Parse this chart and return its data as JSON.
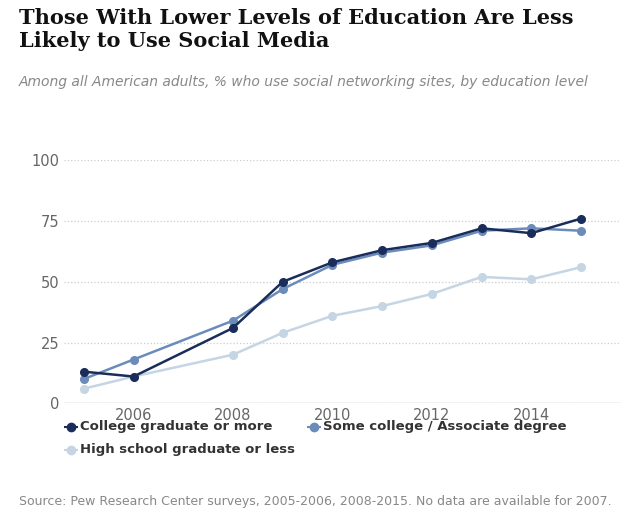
{
  "title_line1": "Those With Lower Levels of Education Are Less",
  "title_line2": "Likely to Use Social Media",
  "subtitle": "Among all American adults, % who use social networking sites, by education level",
  "source": "Source: Pew Research Center surveys, 2005-2006, 2008-2015. No data are available for 2007.",
  "years": [
    2005,
    2006,
    2008,
    2009,
    2010,
    2011,
    2012,
    2013,
    2014,
    2015
  ],
  "college_grad": [
    13,
    11,
    31,
    50,
    58,
    63,
    66,
    72,
    70,
    76
  ],
  "some_college": [
    10,
    18,
    34,
    47,
    57,
    62,
    65,
    71,
    72,
    71
  ],
  "hs_or_less": [
    6,
    11,
    20,
    29,
    36,
    40,
    45,
    52,
    51,
    56
  ],
  "colors": {
    "college_grad": "#1a2d5a",
    "some_college": "#6b8cba",
    "hs_or_less": "#c5d5e4"
  },
  "ylim": [
    0,
    100
  ],
  "yticks": [
    0,
    25,
    50,
    75,
    100
  ],
  "xticks": [
    2006,
    2008,
    2010,
    2012,
    2014
  ],
  "xlim_min": 2004.6,
  "xlim_max": 2015.8,
  "legend_labels": [
    "College graduate or more",
    "Some college / Associate degree",
    "High school graduate or less"
  ],
  "background_color": "#ffffff",
  "title_fontsize": 15,
  "subtitle_fontsize": 10,
  "tick_fontsize": 10.5,
  "legend_fontsize": 9.5,
  "source_fontsize": 9
}
